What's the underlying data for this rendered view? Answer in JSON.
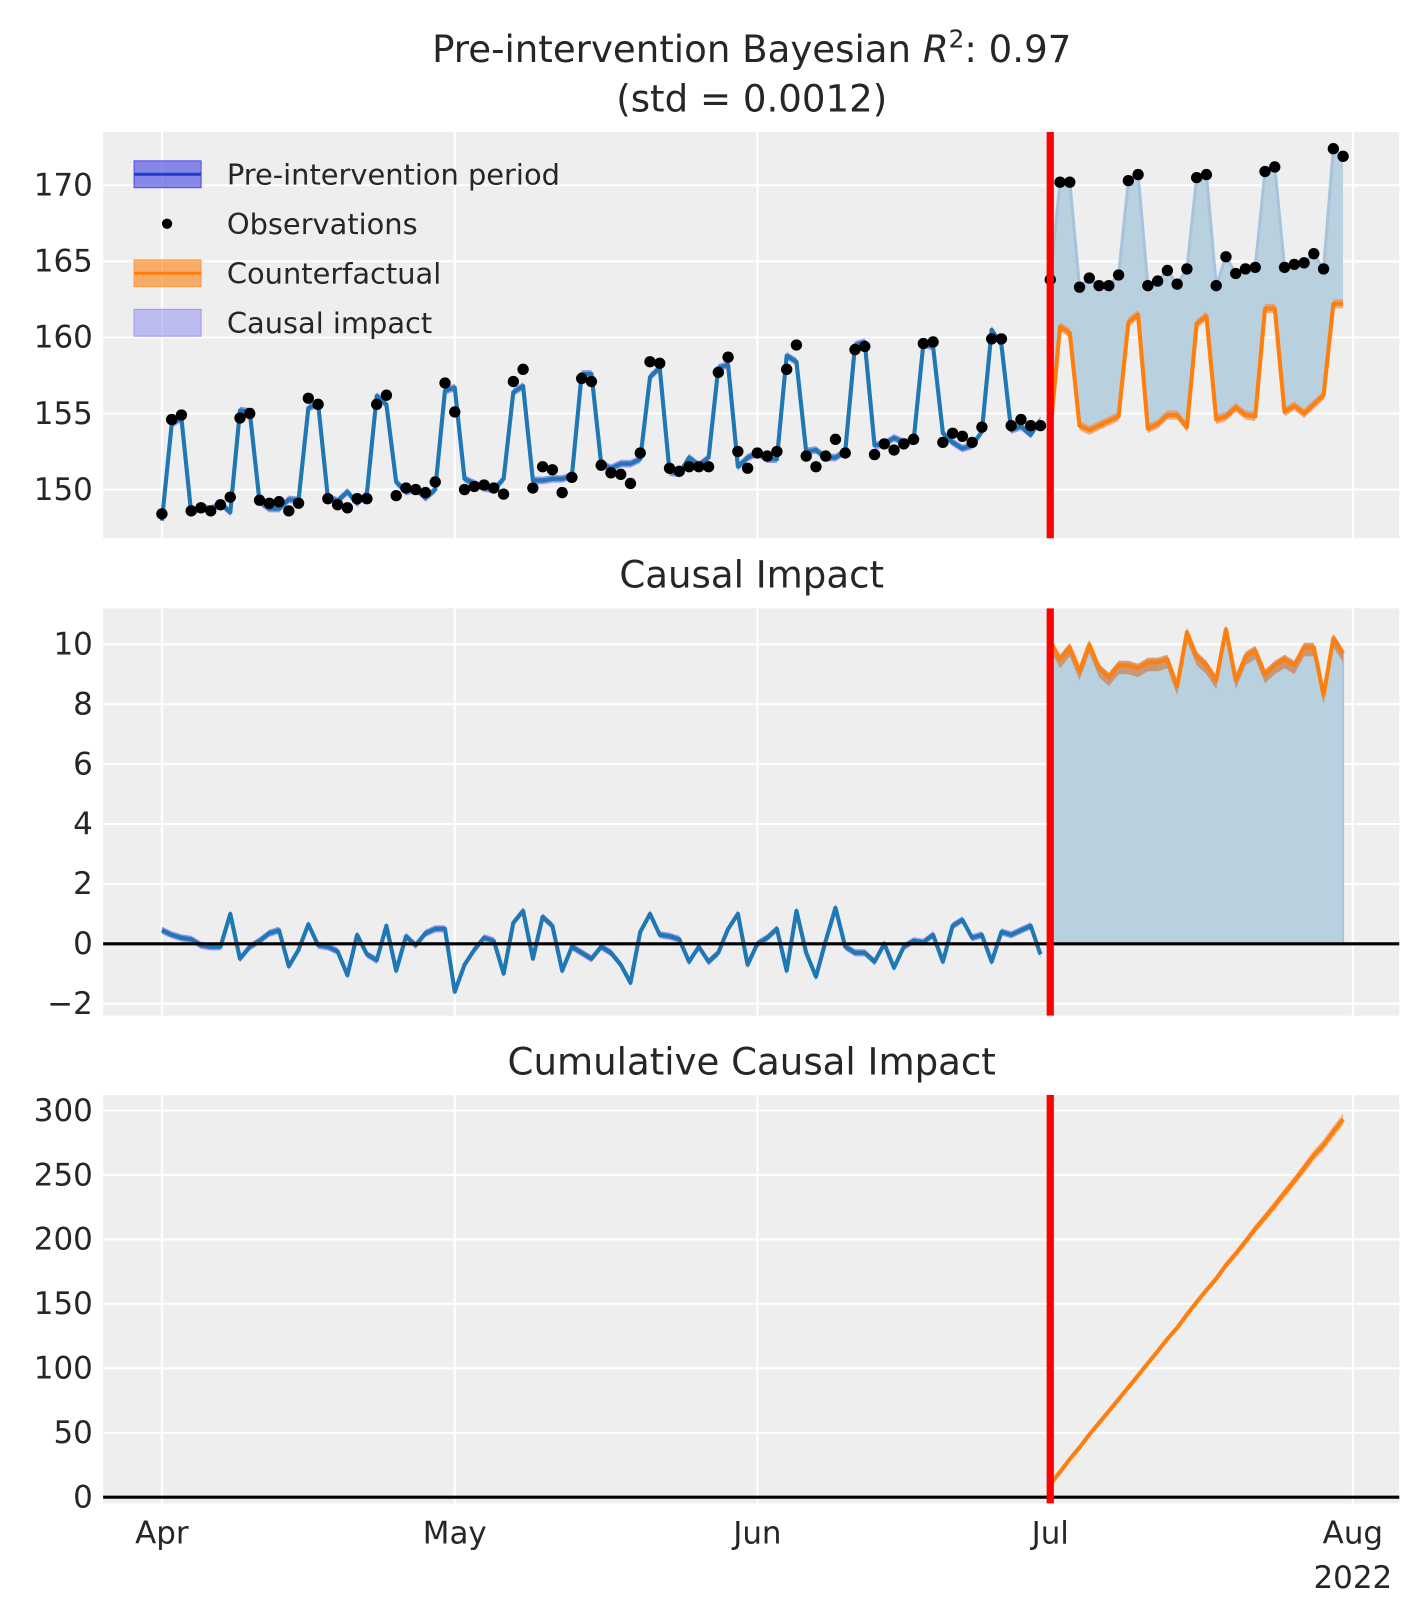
{
  "chart_data": [
    {
      "type": "line",
      "title_prefix": "Pre-intervention Bayesian ",
      "title_var": "R",
      "title_sup": "2",
      "title_suffix": ": 0.97",
      "subtitle": "(std = 0.0012)",
      "ylim": [
        146.8,
        173.5
      ],
      "yticks": [
        150,
        155,
        160,
        165,
        170
      ],
      "grid": true,
      "legend_position": "top-left",
      "legend": [
        {
          "label": "Pre-intervention period",
          "kind": "band-line",
          "color": "#4c4ce8"
        },
        {
          "label": "Observations",
          "kind": "point",
          "color": "#000000"
        },
        {
          "label": "Counterfactual",
          "kind": "band-line",
          "color": "#ff7f0e"
        },
        {
          "label": "Causal impact",
          "kind": "band",
          "color": "#9b9bf0"
        }
      ]
    },
    {
      "type": "line",
      "title": "Causal Impact",
      "ylim": [
        -2.4,
        11.2
      ],
      "yticks": [
        -2,
        0,
        2,
        4,
        6,
        8,
        10
      ],
      "grid": true
    },
    {
      "type": "line",
      "title": "Cumulative Causal Impact",
      "ylim": [
        -4.8,
        312
      ],
      "yticks": [
        0,
        50,
        100,
        150,
        200,
        250,
        300
      ],
      "grid": true
    }
  ],
  "series": {
    "intervention_date": "2022-07-01",
    "dates": [
      "2022-04-01",
      "2022-04-02",
      "2022-04-03",
      "2022-04-04",
      "2022-04-05",
      "2022-04-06",
      "2022-04-07",
      "2022-04-08",
      "2022-04-09",
      "2022-04-10",
      "2022-04-11",
      "2022-04-12",
      "2022-04-13",
      "2022-04-14",
      "2022-04-15",
      "2022-04-16",
      "2022-04-17",
      "2022-04-18",
      "2022-04-19",
      "2022-04-20",
      "2022-04-21",
      "2022-04-22",
      "2022-04-23",
      "2022-04-24",
      "2022-04-25",
      "2022-04-26",
      "2022-04-27",
      "2022-04-28",
      "2022-04-29",
      "2022-04-30",
      "2022-05-01",
      "2022-05-02",
      "2022-05-03",
      "2022-05-04",
      "2022-05-05",
      "2022-05-06",
      "2022-05-07",
      "2022-05-08",
      "2022-05-09",
      "2022-05-10",
      "2022-05-11",
      "2022-05-12",
      "2022-05-13",
      "2022-05-14",
      "2022-05-15",
      "2022-05-16",
      "2022-05-17",
      "2022-05-18",
      "2022-05-19",
      "2022-05-20",
      "2022-05-21",
      "2022-05-22",
      "2022-05-23",
      "2022-05-24",
      "2022-05-25",
      "2022-05-26",
      "2022-05-27",
      "2022-05-28",
      "2022-05-29",
      "2022-05-30",
      "2022-05-31",
      "2022-06-01",
      "2022-06-02",
      "2022-06-03",
      "2022-06-04",
      "2022-06-05",
      "2022-06-06",
      "2022-06-07",
      "2022-06-08",
      "2022-06-09",
      "2022-06-10",
      "2022-06-11",
      "2022-06-12",
      "2022-06-13",
      "2022-06-14",
      "2022-06-15",
      "2022-06-16",
      "2022-06-17",
      "2022-06-18",
      "2022-06-19",
      "2022-06-20",
      "2022-06-21",
      "2022-06-22",
      "2022-06-23",
      "2022-06-24",
      "2022-06-25",
      "2022-06-26",
      "2022-06-27",
      "2022-06-28",
      "2022-06-29",
      "2022-06-30",
      "2022-07-01",
      "2022-07-02",
      "2022-07-03",
      "2022-07-04",
      "2022-07-05",
      "2022-07-06",
      "2022-07-07",
      "2022-07-08",
      "2022-07-09",
      "2022-07-10",
      "2022-07-11",
      "2022-07-12",
      "2022-07-13",
      "2022-07-14",
      "2022-07-15",
      "2022-07-16",
      "2022-07-17",
      "2022-07-18",
      "2022-07-19",
      "2022-07-20",
      "2022-07-21",
      "2022-07-22",
      "2022-07-23",
      "2022-07-24",
      "2022-07-25",
      "2022-07-26",
      "2022-07-27",
      "2022-07-28",
      "2022-07-29",
      "2022-07-30",
      "2022-07-31"
    ],
    "observations": [
      148.4,
      154.6,
      154.9,
      148.6,
      148.8,
      148.6,
      149.0,
      149.5,
      154.7,
      155.0,
      149.3,
      149.1,
      149.2,
      148.6,
      149.1,
      156.0,
      155.6,
      149.4,
      149.0,
      148.8,
      149.4,
      149.4,
      155.6,
      156.2,
      149.6,
      150.1,
      150.0,
      149.8,
      150.5,
      157.0,
      155.1,
      150.0,
      150.2,
      150.3,
      150.1,
      149.7,
      157.1,
      157.9,
      150.1,
      151.5,
      151.3,
      149.8,
      150.8,
      157.3,
      157.1,
      151.6,
      151.1,
      151.0,
      150.4,
      152.4,
      158.4,
      158.3,
      151.4,
      151.2,
      151.5,
      151.5,
      151.5,
      157.7,
      158.7,
      152.5,
      151.4,
      152.4,
      152.2,
      152.5,
      157.9,
      159.5,
      152.2,
      151.5,
      152.2,
      153.3,
      152.4,
      159.2,
      159.4,
      152.3,
      153.0,
      152.6,
      153.0,
      153.3,
      159.6,
      159.7,
      153.1,
      153.7,
      153.5,
      153.1,
      154.1,
      159.9,
      159.9,
      154.2,
      154.6,
      154.2,
      154.2,
      163.8,
      170.2,
      170.2,
      163.3,
      163.9,
      163.4,
      163.4,
      164.1,
      170.3,
      170.7,
      163.4,
      163.7,
      164.4,
      163.5,
      164.5,
      170.5,
      170.7,
      163.4,
      165.3,
      164.2,
      164.5,
      164.6,
      170.9,
      171.2,
      164.6,
      164.8,
      164.9,
      165.5,
      164.5,
      172.4,
      171.9
    ],
    "causal_impact": [
      0.45,
      0.3,
      0.2,
      0.15,
      -0.05,
      -0.1,
      -0.1,
      1.0,
      -0.5,
      -0.1,
      0.1,
      0.35,
      0.45,
      -0.75,
      -0.2,
      0.65,
      -0.05,
      -0.1,
      -0.25,
      -1.05,
      0.3,
      -0.35,
      -0.55,
      0.6,
      -0.9,
      0.25,
      -0.05,
      0.35,
      0.5,
      0.5,
      -1.6,
      -0.7,
      -0.2,
      0.2,
      0.1,
      -1.0,
      0.7,
      1.1,
      -0.5,
      0.9,
      0.6,
      -0.9,
      -0.1,
      -0.3,
      -0.5,
      -0.1,
      -0.3,
      -0.7,
      -1.3,
      0.4,
      1.0,
      0.3,
      0.25,
      0.15,
      -0.6,
      -0.1,
      -0.6,
      -0.3,
      0.5,
      1.0,
      -0.7,
      0.0,
      0.2,
      0.5,
      -0.9,
      1.1,
      -0.3,
      -1.1,
      0.1,
      1.2,
      -0.1,
      -0.3,
      -0.3,
      -0.6,
      0.0,
      -0.8,
      -0.1,
      0.1,
      0.05,
      0.3,
      -0.6,
      0.6,
      0.8,
      0.2,
      0.3,
      -0.6,
      0.4,
      0.3,
      0.45,
      0.6,
      -0.35,
      10.1,
      9.5,
      9.9,
      9.1,
      10.0,
      9.2,
      8.9,
      9.3,
      9.3,
      9.2,
      9.4,
      9.4,
      9.5,
      8.6,
      10.4,
      9.6,
      9.3,
      8.8,
      10.5,
      8.8,
      9.6,
      9.8,
      9.0,
      9.3,
      9.5,
      9.3,
      9.9,
      9.9,
      8.3,
      10.2,
      9.7
    ]
  },
  "x_axis": {
    "ticks": [
      {
        "label": "Apr",
        "date": "2022-04-01"
      },
      {
        "label": "May",
        "date": "2022-05-01"
      },
      {
        "label": "Jun",
        "date": "2022-06-01"
      },
      {
        "label": "Jul",
        "date": "2022-07-01"
      },
      {
        "label": "Aug",
        "date": "2022-08-01"
      }
    ],
    "year_label": "2022"
  },
  "colors": {
    "background": "#eeeeee",
    "fit": "#1f77b4",
    "fit_band": "#5a5ae6",
    "counterfactual": "#ff7f0e",
    "impact_fill": "#b9d0df",
    "intervention": "#ff0000",
    "observation": "#000000"
  }
}
